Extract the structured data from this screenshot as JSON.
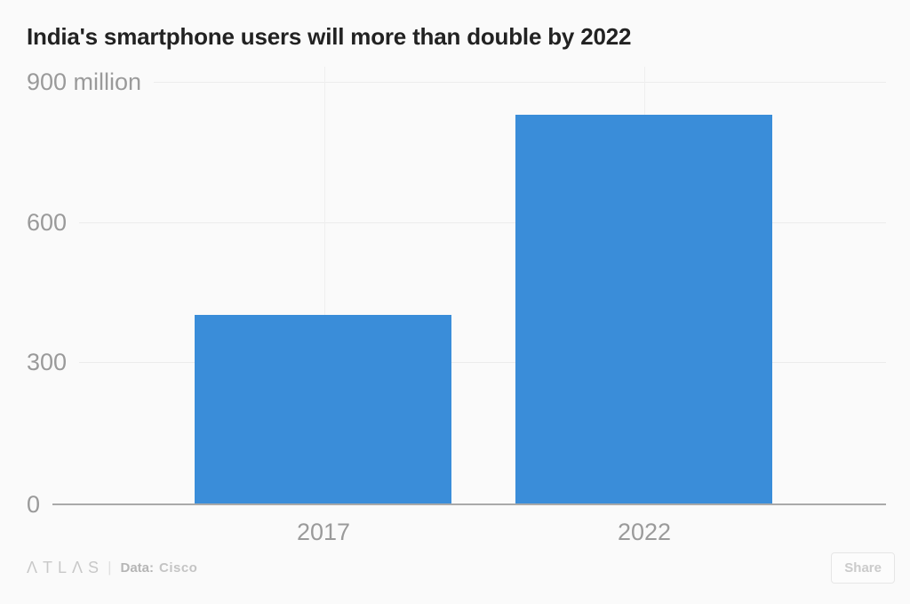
{
  "chart": {
    "title": "India's smartphone users will more than double by 2022"
  },
  "y_axis": {
    "ticks": [
      "900 million",
      "600",
      "300",
      "0"
    ]
  },
  "footer": {
    "logo": "ΛTLΛS",
    "divider": "|",
    "source_label": "Data:",
    "source": "Cisco",
    "share_label": "Share"
  },
  "colors": {
    "bar": "#3a8dd9",
    "background": "#fafafa",
    "grid": "#ececec",
    "axis": "#a9a9a9",
    "title_text": "#222222",
    "tick_text": "#9a9a9a"
  },
  "chart_data": {
    "type": "bar",
    "categories": [
      "2017",
      "2022"
    ],
    "values": [
      404,
      830
    ],
    "title": "India's smartphone users will more than double by 2022",
    "xlabel": "",
    "ylabel": "million",
    "ylim": [
      0,
      900
    ],
    "yticks": [
      0,
      300,
      600,
      900
    ],
    "grid": "horizontal",
    "legend_position": "none",
    "source": "Cisco"
  }
}
